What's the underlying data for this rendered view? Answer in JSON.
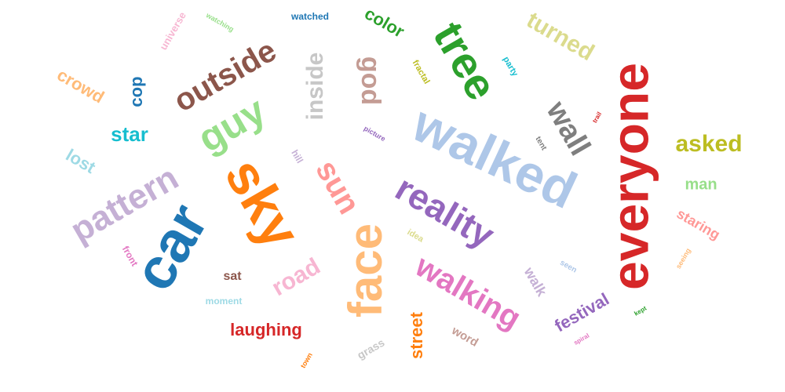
{
  "words": [
    {
      "text": "walked",
      "color": "#aec7e8"
    },
    {
      "text": "everyone",
      "color": "#d62728"
    },
    {
      "text": "car",
      "color": "#1f77b4"
    },
    {
      "text": "sky",
      "color": "#ff7f0e"
    },
    {
      "text": "face",
      "color": "#ffbb78"
    },
    {
      "text": "tree",
      "color": "#2ca02c"
    },
    {
      "text": "reality",
      "color": "#9467bd"
    },
    {
      "text": "guy",
      "color": "#98df8a"
    },
    {
      "text": "pattern",
      "color": "#c5b0d5"
    },
    {
      "text": "outside",
      "color": "#8c564b"
    },
    {
      "text": "walking",
      "color": "#e377c2"
    },
    {
      "text": "sun",
      "color": "#ff9896"
    },
    {
      "text": "wall",
      "color": "#7f7f7f"
    },
    {
      "text": "god",
      "color": "#c49c94"
    },
    {
      "text": "inside",
      "color": "#c7c7c7"
    },
    {
      "text": "road",
      "color": "#f7b6d2"
    },
    {
      "text": "turned",
      "color": "#dbdb8d"
    },
    {
      "text": "asked",
      "color": "#bcbd22"
    },
    {
      "text": "crowd",
      "color": "#ffbb78"
    },
    {
      "text": "star",
      "color": "#17becf"
    },
    {
      "text": "lost",
      "color": "#9edae5"
    },
    {
      "text": "cop",
      "color": "#1f77b4"
    },
    {
      "text": "laughing",
      "color": "#d62728"
    },
    {
      "text": "street",
      "color": "#ff7f0e"
    },
    {
      "text": "festival",
      "color": "#9467bd"
    },
    {
      "text": "color",
      "color": "#2ca02c"
    },
    {
      "text": "man",
      "color": "#98df8a"
    },
    {
      "text": "staring",
      "color": "#ff9896"
    },
    {
      "text": "walk",
      "color": "#c5b0d5"
    },
    {
      "text": "word",
      "color": "#c49c94"
    },
    {
      "text": "sat",
      "color": "#8c564b"
    },
    {
      "text": "grass",
      "color": "#c7c7c7"
    },
    {
      "text": "universe",
      "color": "#f7b6d2"
    },
    {
      "text": "hill",
      "color": "#c5b0d5"
    },
    {
      "text": "watched",
      "color": "#1f77b4"
    },
    {
      "text": "fractal",
      "color": "#bcbd22"
    },
    {
      "text": "front",
      "color": "#e377c2"
    },
    {
      "text": "moment",
      "color": "#9edae5"
    },
    {
      "text": "idea",
      "color": "#dbdb8d"
    },
    {
      "text": "tent",
      "color": "#7f7f7f"
    },
    {
      "text": "seen",
      "color": "#aec7e8"
    },
    {
      "text": "watching",
      "color": "#98df8a"
    },
    {
      "text": "party",
      "color": "#17becf"
    },
    {
      "text": "picture",
      "color": "#9467bd"
    },
    {
      "text": "trail",
      "color": "#d62728"
    },
    {
      "text": "seeing",
      "color": "#ffbb78"
    },
    {
      "text": "kept",
      "color": "#2ca02c"
    },
    {
      "text": "spiral",
      "color": "#e377c2"
    },
    {
      "text": "town",
      "color": "#ff7f0e"
    }
  ]
}
